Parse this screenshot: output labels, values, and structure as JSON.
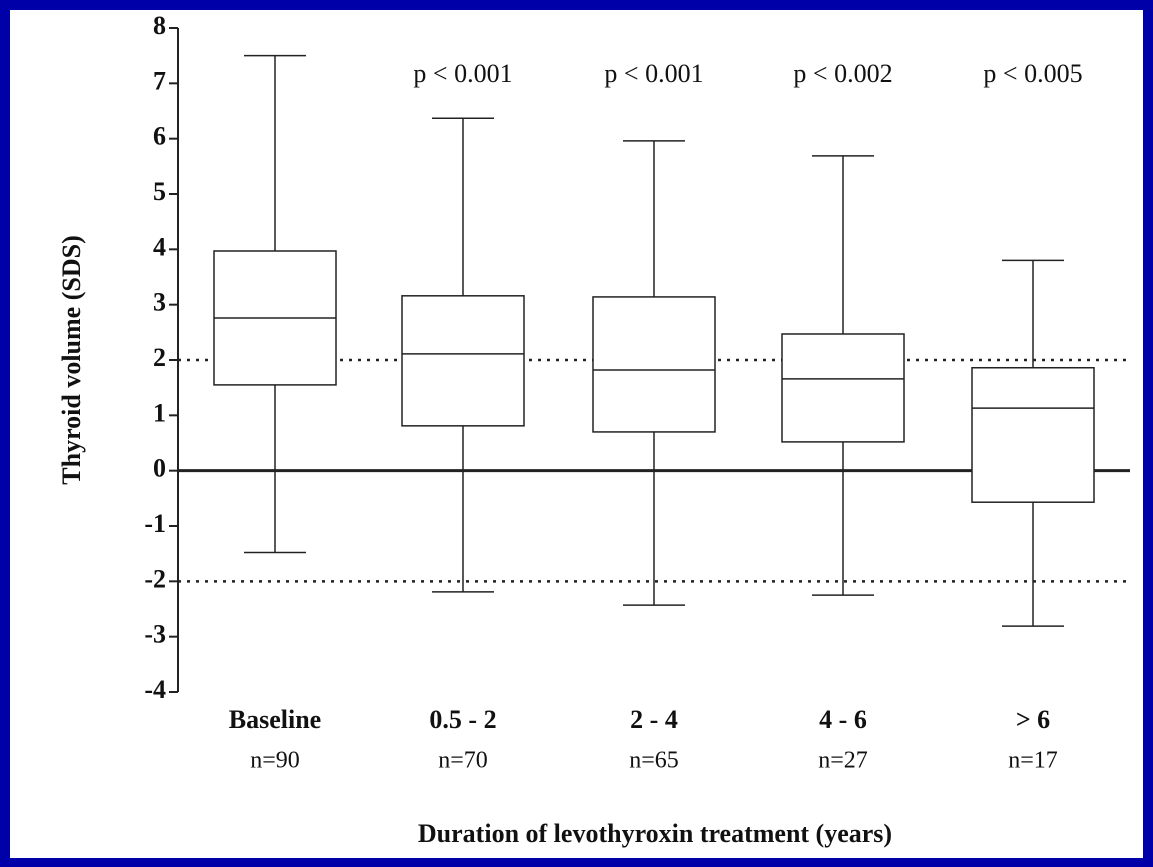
{
  "chart_data": {
    "type": "box",
    "y_label": "Thyroid volume (SDS)",
    "x_label": "Duration of levothyroxin treatment (years)",
    "categories": [
      "Baseline",
      "0.5 - 2",
      "2 - 4",
      "4 - 6",
      "> 6"
    ],
    "n_labels": [
      "n=90",
      "n=70",
      "n=65",
      "n=27",
      "n=17"
    ],
    "p_values": [
      null,
      "p < 0.001",
      "p < 0.001",
      "p < 0.002",
      "p < 0.005"
    ],
    "whisker_low": [
      -1.48,
      -2.19,
      -2.43,
      -2.25,
      -2.81
    ],
    "q1": [
      1.55,
      0.81,
      0.7,
      0.52,
      -0.57
    ],
    "median": [
      2.76,
      2.11,
      1.82,
      1.66,
      1.13
    ],
    "q3": [
      3.97,
      3.16,
      3.14,
      2.47,
      1.86
    ],
    "whisker_high": [
      7.5,
      6.37,
      5.96,
      5.69,
      3.8
    ],
    "ylim": [
      -4,
      8
    ],
    "yticks": [
      -4,
      -3,
      -2,
      -1,
      0,
      1,
      2,
      3,
      4,
      5,
      6,
      7,
      8
    ],
    "reference_lines": [
      2,
      -2
    ],
    "zero_line": 0,
    "color": "#222222"
  }
}
